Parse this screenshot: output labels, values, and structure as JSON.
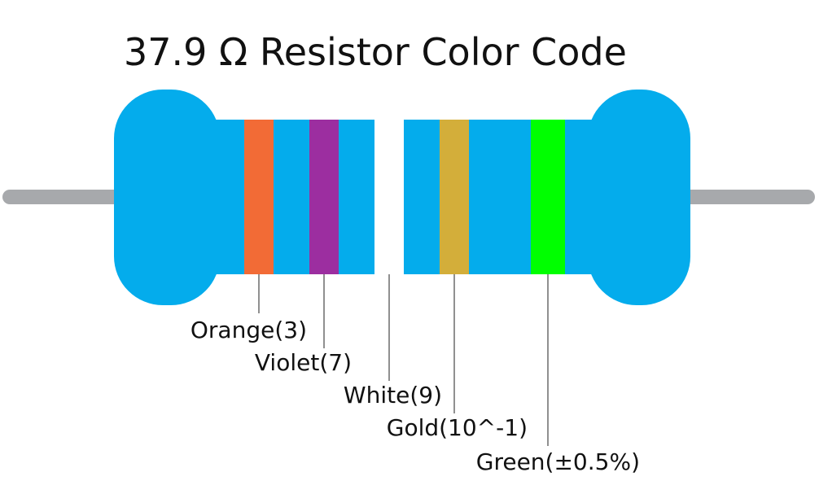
{
  "title": "37.9 Ω Resistor Color Code",
  "bands": [
    {
      "label": "Orange(3)",
      "color": "#f26b36"
    },
    {
      "label": "Violet(7)",
      "color": "#9c2ea0"
    },
    {
      "label": "White(9)",
      "color": "#ffffff"
    },
    {
      "label": "Gold(10^-1)",
      "color": "#d3ae3a"
    },
    {
      "label": "Green(±0.5%)",
      "color": "#00ff00"
    }
  ]
}
